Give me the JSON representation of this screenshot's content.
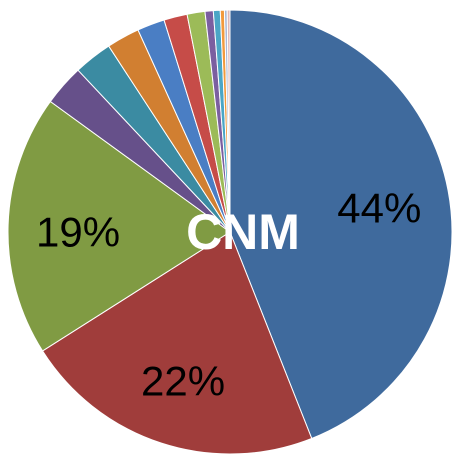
{
  "chart_data": {
    "type": "pie",
    "title": "CNM",
    "values": [
      44,
      22,
      19,
      3,
      2.8,
      2.4,
      2,
      1.7,
      1.3,
      0.6,
      0.5,
      0.3,
      0.2,
      0.2
    ],
    "value_labels": [
      "44%",
      "22%",
      "19%",
      null,
      null,
      null,
      null,
      null,
      null,
      null,
      null,
      null,
      null,
      null
    ],
    "colors": [
      "#3f6a9d",
      "#a03d3b",
      "#809b43",
      "#66508a",
      "#3b8ba2",
      "#d17f31",
      "#4a7ec4",
      "#c64c48",
      "#9cbb58",
      "#7b5fa0",
      "#4ba6c6",
      "#f29a3d",
      "#a9b8d6",
      "#e0b8b6"
    ]
  }
}
